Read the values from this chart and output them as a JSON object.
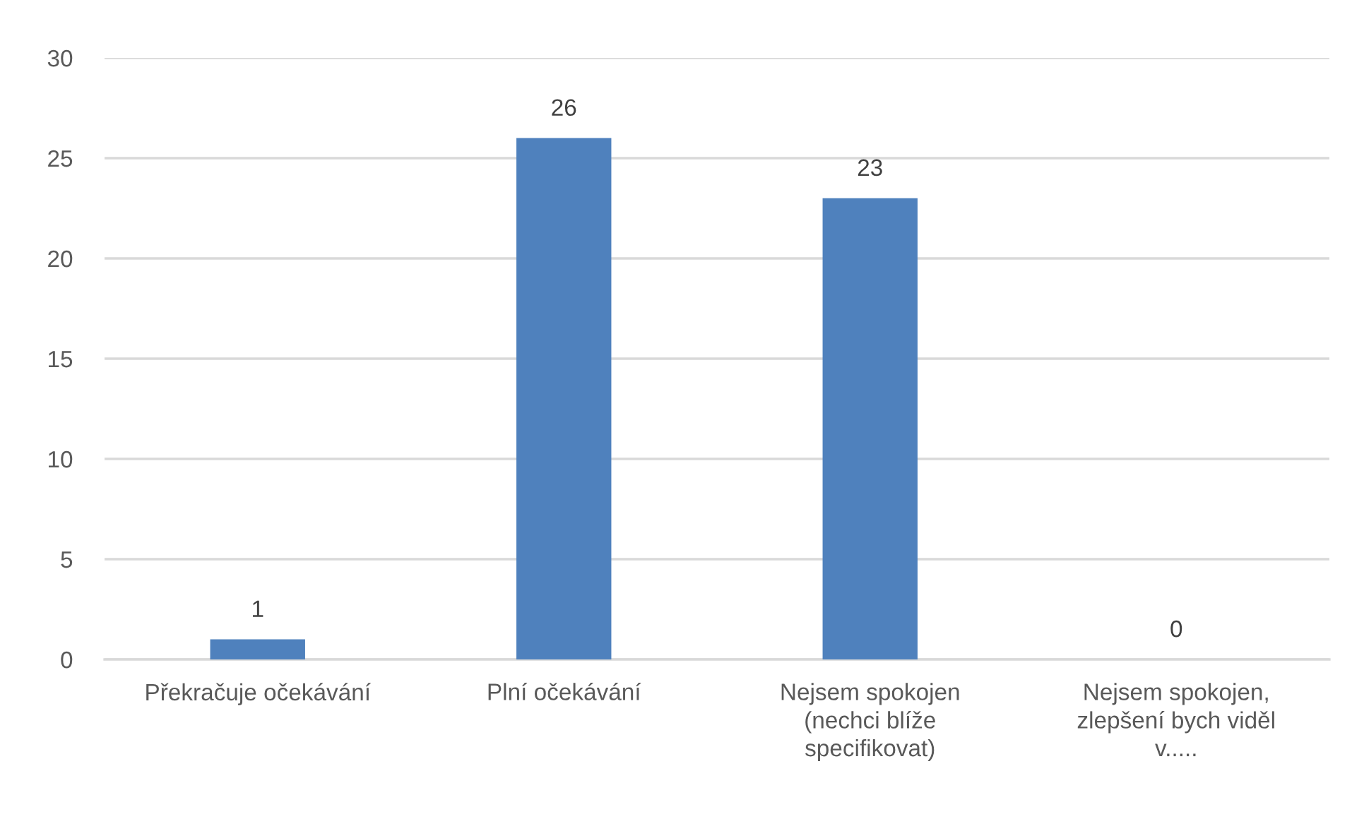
{
  "chart_data": {
    "type": "bar",
    "categories": [
      "Překračuje očekávání",
      "Plní očekávání",
      "Nejsem spokojen\n(nechci blíže\nspecifikovat)",
      "Nejsem spokojen,\nzlepšení bych viděl\nv....."
    ],
    "values": [
      1,
      26,
      23,
      0
    ],
    "color": "#4f81bd",
    "ylim": [
      0,
      30
    ],
    "yticks": [
      0,
      5,
      10,
      15,
      20,
      25,
      30
    ],
    "grid": "y",
    "data_labels": true
  }
}
